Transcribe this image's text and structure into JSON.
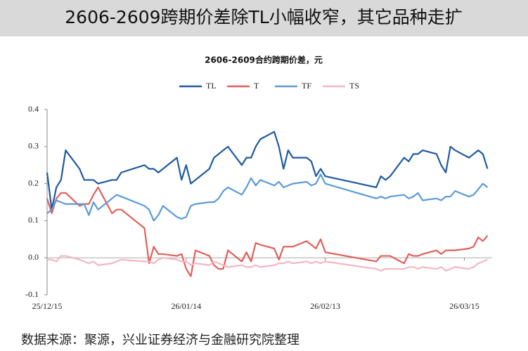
{
  "header": {
    "title": "2606-2609跨期价差除TL小幅收窄，其它品种走扩"
  },
  "chart_data": {
    "type": "line",
    "title": "2606-2609合约跨期价差，元",
    "x": [
      0,
      1,
      2,
      3,
      4,
      7,
      8,
      9,
      10,
      11,
      14,
      15,
      16,
      21,
      22,
      23,
      24,
      25,
      28,
      29,
      30,
      31,
      32,
      35,
      36,
      37,
      38,
      39,
      42,
      43,
      44,
      45,
      46,
      49,
      50,
      51,
      52,
      53,
      56,
      57,
      58,
      59,
      60,
      71,
      72,
      73,
      74,
      77,
      78,
      79,
      80,
      81,
      84,
      85,
      86,
      87,
      88,
      91,
      92,
      93,
      94,
      95
    ],
    "xlim": [
      0,
      96
    ],
    "xticks": [
      {
        "value": 0,
        "label": "25/12/15"
      },
      {
        "value": 30,
        "label": "26/01/14"
      },
      {
        "value": 60,
        "label": "26/02/13"
      },
      {
        "value": 90,
        "label": "26/03/15"
      }
    ],
    "ylim": [
      -0.1,
      0.4
    ],
    "yticks": [
      -0.1,
      {
        "value": 0,
        "label": "0.0"
      },
      0.1,
      0.2,
      0.3,
      0.4
    ],
    "legend": "top",
    "series": [
      {
        "name": "TL",
        "color": "#1f5aa0",
        "values": [
          0.23,
          0.13,
          0.19,
          0.21,
          0.29,
          0.24,
          0.21,
          0.21,
          0.21,
          0.2,
          0.21,
          0.21,
          0.23,
          0.25,
          0.24,
          0.24,
          0.23,
          0.24,
          0.27,
          0.21,
          0.25,
          0.2,
          0.21,
          0.24,
          0.27,
          0.28,
          0.29,
          0.3,
          0.25,
          0.27,
          0.27,
          0.3,
          0.32,
          0.34,
          0.3,
          0.24,
          0.29,
          0.27,
          0.27,
          0.26,
          0.22,
          0.24,
          0.22,
          0.19,
          0.22,
          0.21,
          0.22,
          0.27,
          0.26,
          0.28,
          0.28,
          0.29,
          0.28,
          0.25,
          0.23,
          0.3,
          0.29,
          0.27,
          0.28,
          0.29,
          0.28,
          0.24
        ]
      },
      {
        "name": "T",
        "color": "#e0605a",
        "values": [
          0.16,
          0.12,
          0.16,
          0.175,
          0.175,
          0.14,
          0.145,
          0.145,
          0.17,
          0.19,
          0.12,
          0.13,
          0.13,
          0.08,
          -0.015,
          0.03,
          0.01,
          0.01,
          0.005,
          0.01,
          -0.03,
          -0.05,
          0.02,
          0.005,
          -0.02,
          -0.03,
          -0.03,
          0.02,
          -0.01,
          0.015,
          -0.01,
          0.04,
          0.035,
          0.025,
          -0.005,
          0.03,
          0.03,
          0.03,
          0.045,
          0.035,
          0.025,
          0.05,
          0.015,
          -0.01,
          0.005,
          0.005,
          0.005,
          -0.015,
          0.01,
          0.005,
          0.005,
          0.01,
          0.02,
          0.01,
          0.02,
          0.02,
          0.02,
          0.025,
          0.03,
          0.055,
          0.045,
          0.06
        ]
      },
      {
        "name": "TF",
        "color": "#5b9bd5",
        "values": [
          0.12,
          0.13,
          0.155,
          0.15,
          0.145,
          0.145,
          0.145,
          0.115,
          0.15,
          0.13,
          0.16,
          0.17,
          0.165,
          0.14,
          0.13,
          0.1,
          0.115,
          0.14,
          0.11,
          0.105,
          0.11,
          0.14,
          0.145,
          0.15,
          0.15,
          0.16,
          0.18,
          0.19,
          0.17,
          0.19,
          0.215,
          0.195,
          0.21,
          0.195,
          0.205,
          0.19,
          0.195,
          0.2,
          0.205,
          0.195,
          0.2,
          0.225,
          0.2,
          0.16,
          0.165,
          0.16,
          0.165,
          0.17,
          0.16,
          0.165,
          0.175,
          0.155,
          0.16,
          0.155,
          0.165,
          0.165,
          0.18,
          0.165,
          0.17,
          0.185,
          0.2,
          0.19
        ]
      },
      {
        "name": "TS",
        "color": "#f4b6c2",
        "values": [
          -0.005,
          -0.005,
          -0.01,
          0.005,
          0.005,
          -0.005,
          -0.01,
          -0.015,
          -0.01,
          -0.02,
          -0.015,
          -0.01,
          -0.005,
          -0.01,
          -0.01,
          -0.015,
          -0.005,
          0,
          -0.005,
          -0.01,
          -0.01,
          -0.02,
          -0.015,
          -0.02,
          -0.01,
          -0.015,
          -0.02,
          -0.025,
          -0.02,
          -0.025,
          -0.025,
          -0.02,
          -0.025,
          -0.02,
          -0.015,
          -0.015,
          -0.01,
          -0.015,
          -0.01,
          -0.015,
          -0.01,
          -0.015,
          -0.01,
          -0.03,
          -0.035,
          -0.03,
          -0.03,
          -0.03,
          -0.025,
          -0.025,
          -0.03,
          -0.025,
          -0.03,
          -0.025,
          -0.035,
          -0.03,
          -0.025,
          -0.03,
          -0.025,
          -0.015,
          -0.01,
          -0.005
        ]
      }
    ]
  },
  "source": "数据来源：聚源，兴业证券经济与金融研究院整理"
}
